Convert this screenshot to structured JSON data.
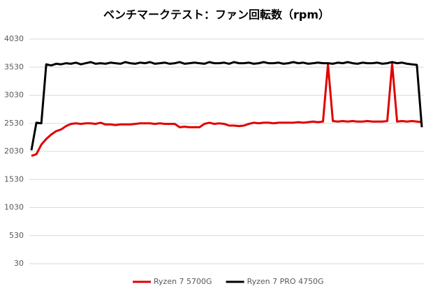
{
  "chart_data": {
    "type": "line",
    "title": "ベンチマークテスト：ファン回転数（rpm）",
    "categories": [
      null,
      null,
      null,
      null,
      null,
      null,
      null,
      null,
      null,
      null,
      null,
      null,
      null,
      null,
      null,
      null,
      null,
      null,
      null,
      null,
      null,
      null,
      null,
      null,
      null,
      null,
      null,
      null,
      null,
      null,
      null,
      null,
      null,
      null,
      null,
      null,
      null,
      null,
      null,
      null,
      null,
      null,
      null,
      null,
      null,
      null,
      null,
      null,
      null,
      null,
      null,
      null,
      null,
      null,
      null,
      null,
      null,
      null,
      null,
      null,
      null,
      null,
      null,
      null,
      null,
      null,
      null,
      null,
      null,
      null,
      null,
      null,
      null,
      null,
      null,
      null,
      null,
      null,
      null,
      null
    ],
    "series": [
      {
        "name": "Ryzen 7 5700G",
        "color": "#e00000",
        "values": [
          1950,
          1980,
          2150,
          2250,
          2330,
          2390,
          2420,
          2480,
          2520,
          2530,
          2520,
          2530,
          2530,
          2520,
          2540,
          2510,
          2510,
          2500,
          2510,
          2510,
          2510,
          2520,
          2530,
          2530,
          2530,
          2520,
          2530,
          2520,
          2520,
          2520,
          2460,
          2470,
          2460,
          2460,
          2460,
          2520,
          2540,
          2520,
          2530,
          2520,
          2490,
          2490,
          2480,
          2490,
          2520,
          2540,
          2530,
          2540,
          2540,
          2530,
          2540,
          2540,
          2540,
          2540,
          2550,
          2540,
          2550,
          2560,
          2550,
          2560,
          3580,
          2570,
          2560,
          2570,
          2560,
          2570,
          2560,
          2560,
          2570,
          2560,
          2560,
          2560,
          2570,
          3590,
          2560,
          2570,
          2560,
          2570,
          2560,
          2550
        ]
      },
      {
        "name": "Ryzen 7 PRO 4750G",
        "color": "#000000",
        "values": [
          2050,
          2540,
          2530,
          3580,
          3560,
          3590,
          3580,
          3600,
          3590,
          3610,
          3580,
          3600,
          3620,
          3590,
          3600,
          3590,
          3610,
          3600,
          3590,
          3620,
          3600,
          3590,
          3610,
          3600,
          3620,
          3590,
          3600,
          3610,
          3590,
          3600,
          3620,
          3590,
          3600,
          3610,
          3600,
          3590,
          3620,
          3600,
          3600,
          3610,
          3590,
          3620,
          3600,
          3600,
          3610,
          3590,
          3600,
          3620,
          3600,
          3600,
          3610,
          3590,
          3600,
          3620,
          3600,
          3610,
          3590,
          3600,
          3610,
          3600,
          3600,
          3590,
          3610,
          3600,
          3620,
          3600,
          3590,
          3610,
          3600,
          3600,
          3610,
          3590,
          3600,
          3620,
          3600,
          3610,
          3590,
          3580,
          3570,
          2460
        ]
      }
    ],
    "ylim": [
      30,
      4030
    ],
    "yticks": [
      30,
      530,
      1030,
      1530,
      2030,
      2530,
      3030,
      3530,
      4030
    ],
    "grid": true,
    "legend": "bottom"
  }
}
